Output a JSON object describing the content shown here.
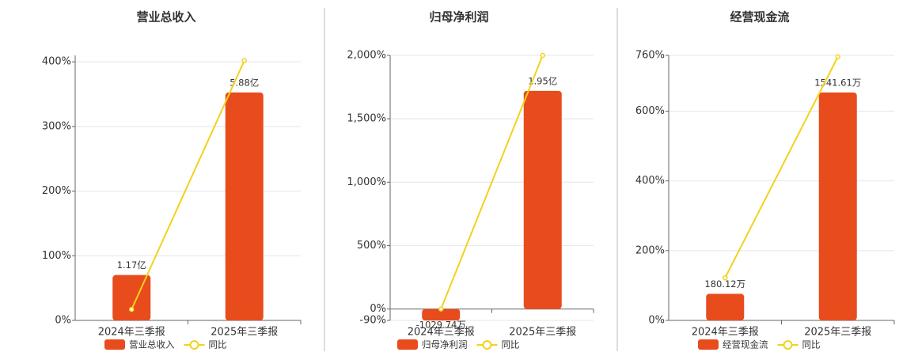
{
  "chart_data": [
    {
      "type": "bar-line",
      "title": "营业总收入",
      "categories": [
        "2024年三季报",
        "2025年三季报"
      ],
      "series": [
        {
          "name": "营业总收入",
          "type": "bar",
          "color": "#e84c1d",
          "values": [
            117000000,
            588000000
          ],
          "value_labels": [
            "1.17亿",
            "5.88亿"
          ]
        },
        {
          "name": "同比",
          "type": "line",
          "color": "#f2d21b",
          "values": [
            17,
            402
          ]
        }
      ],
      "ylim": [
        0,
        410
      ],
      "yticks": [
        {
          "value": 0,
          "label": "0%"
        },
        {
          "value": 100,
          "label": "100%"
        },
        {
          "value": 200,
          "label": "200%"
        },
        {
          "value": 300,
          "label": "300%"
        },
        {
          "value": 400,
          "label": "400%"
        }
      ],
      "grid": true
    },
    {
      "type": "bar-line",
      "title": "归母净利润",
      "categories": [
        "2024年三季报",
        "2025年三季报"
      ],
      "series": [
        {
          "name": "归母净利润",
          "type": "bar",
          "color": "#e84c1d",
          "values": [
            -10297400,
            195000000
          ],
          "value_labels": [
            "-1029.74万",
            "1.95亿"
          ]
        },
        {
          "name": "同比",
          "type": "line",
          "color": "#f2d21b",
          "values": [
            0,
            2000
          ]
        }
      ],
      "ylim": [
        -90,
        2000
      ],
      "yticks": [
        {
          "value": -90,
          "label": "-90%"
        },
        {
          "value": 0,
          "label": "0%"
        },
        {
          "value": 500,
          "label": "500%"
        },
        {
          "value": 1000,
          "label": "1,000%"
        },
        {
          "value": 1500,
          "label": "1,500%"
        },
        {
          "value": 2000,
          "label": "2,000%"
        }
      ],
      "grid": true
    },
    {
      "type": "bar-line",
      "title": "经营现金流",
      "categories": [
        "2024年三季报",
        "2025年三季报"
      ],
      "series": [
        {
          "name": "经营现金流",
          "type": "bar",
          "color": "#e84c1d",
          "values": [
            1801200,
            15416100
          ],
          "value_labels": [
            "180.12万",
            "1541.61万"
          ]
        },
        {
          "name": "同比",
          "type": "line",
          "color": "#f2d21b",
          "values": [
            122,
            756
          ]
        }
      ],
      "ylim": [
        0,
        760
      ],
      "yticks": [
        {
          "value": 0,
          "label": "0%"
        },
        {
          "value": 200,
          "label": "200%"
        },
        {
          "value": 400,
          "label": "400%"
        },
        {
          "value": 600,
          "label": "600%"
        },
        {
          "value": 760,
          "label": "760%"
        }
      ],
      "grid": true
    }
  ]
}
